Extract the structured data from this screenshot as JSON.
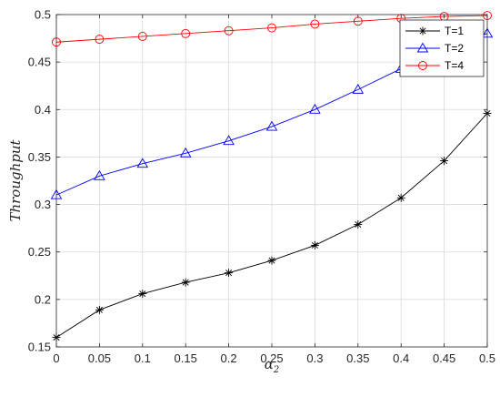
{
  "chart_data": {
    "type": "line",
    "xlabel_base": "α",
    "xlabel_sub": "2",
    "ylabel": "Throughput",
    "x": [
      0,
      0.05,
      0.1,
      0.15,
      0.2,
      0.25,
      0.3,
      0.35,
      0.4,
      0.45,
      0.5
    ],
    "xticks": [
      "0",
      "0.05",
      "0.1",
      "0.15",
      "0.2",
      "0.25",
      "0.3",
      "0.35",
      "0.4",
      "0.45",
      "0.5"
    ],
    "yticks": [
      "0.15",
      "0.2",
      "0.25",
      "0.3",
      "0.35",
      "0.4",
      "0.45",
      "0.5"
    ],
    "xlim": [
      0,
      0.5
    ],
    "ylim": [
      0.15,
      0.5
    ],
    "grid": true,
    "legend_position": "top-right",
    "series": [
      {
        "name": "T=1",
        "color": "#000000",
        "marker": "asterisk",
        "values": [
          0.16,
          0.189,
          0.206,
          0.218,
          0.228,
          0.241,
          0.257,
          0.279,
          0.307,
          0.346,
          0.396
        ]
      },
      {
        "name": "T=2",
        "color": "#0000ff",
        "marker": "triangle",
        "values": [
          0.31,
          0.33,
          0.343,
          0.354,
          0.367,
          0.382,
          0.4,
          0.421,
          0.443,
          0.464,
          0.48
        ]
      },
      {
        "name": "T=4",
        "color": "#ff0000",
        "marker": "circle",
        "values": [
          0.471,
          0.474,
          0.477,
          0.48,
          0.483,
          0.486,
          0.49,
          0.493,
          0.496,
          0.498,
          0.499
        ]
      }
    ]
  }
}
